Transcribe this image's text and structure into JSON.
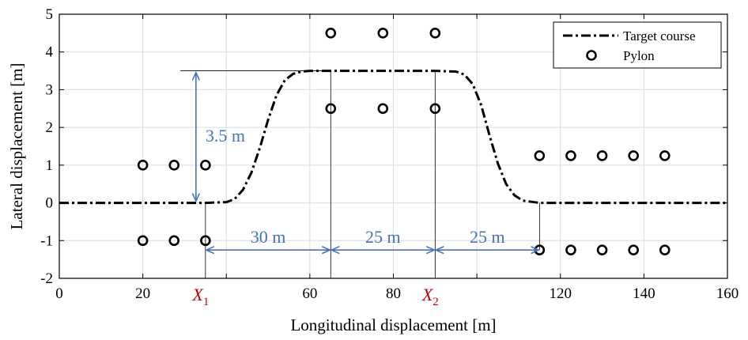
{
  "chart_data": {
    "type": "line",
    "title": "",
    "xlabel": "Longitudinal displacement [m]",
    "ylabel": "Lateral displacement [m]",
    "xlim": [
      0,
      160
    ],
    "ylim": [
      -2,
      5
    ],
    "xticks": [
      0,
      20,
      40,
      60,
      80,
      100,
      120,
      140,
      160
    ],
    "yticks": [
      -2,
      -1,
      0,
      1,
      2,
      3,
      4,
      5
    ],
    "xtick_labels": [
      "0",
      "20",
      "",
      "60",
      "80",
      "",
      "120",
      "140",
      "160"
    ],
    "ytick_labels": [
      "-2",
      "-1",
      "0",
      "1",
      "2",
      "3",
      "4",
      "5"
    ],
    "grid": true,
    "legend_position": "top-right",
    "series": [
      {
        "name": "Target course",
        "style": "dash-dot",
        "color": "#000000",
        "x": [
          0,
          35,
          40,
          42,
          44,
          46,
          48,
          50,
          52,
          54,
          56,
          58,
          60,
          65,
          90,
          95,
          97,
          99,
          101,
          103,
          105,
          107,
          109,
          111,
          115,
          160
        ],
        "y": [
          0,
          0,
          0.02,
          0.1,
          0.35,
          0.8,
          1.45,
          2.2,
          2.85,
          3.25,
          3.42,
          3.48,
          3.5,
          3.5,
          3.5,
          3.48,
          3.4,
          3.15,
          2.6,
          1.8,
          1.05,
          0.5,
          0.2,
          0.06,
          0,
          0
        ]
      },
      {
        "name": "Pylon",
        "style": "marker-circle",
        "color": "#000000",
        "x": [
          20,
          27.5,
          35,
          20,
          27.5,
          35,
          65,
          77.5,
          90,
          65,
          77.5,
          90,
          115,
          122.5,
          130,
          137.5,
          145,
          115,
          122.5,
          130,
          137.5,
          145
        ],
        "y": [
          1,
          1,
          1,
          -1,
          -1,
          -1,
          4.5,
          4.5,
          4.5,
          2.5,
          2.5,
          2.5,
          1.25,
          1.25,
          1.25,
          1.25,
          1.25,
          -1.25,
          -1.25,
          -1.25,
          -1.25,
          -1.25
        ]
      }
    ],
    "annotations": {
      "height_label": "3.5 m",
      "segment_labels": [
        "30 m",
        "25 m",
        "25 m"
      ],
      "markers": [
        {
          "letter": "X",
          "sub": "1",
          "x": 35
        },
        {
          "letter": "X",
          "sub": "2",
          "x": 90
        }
      ],
      "dim_color": "#4472c4",
      "marker_color": "#c00000"
    }
  }
}
